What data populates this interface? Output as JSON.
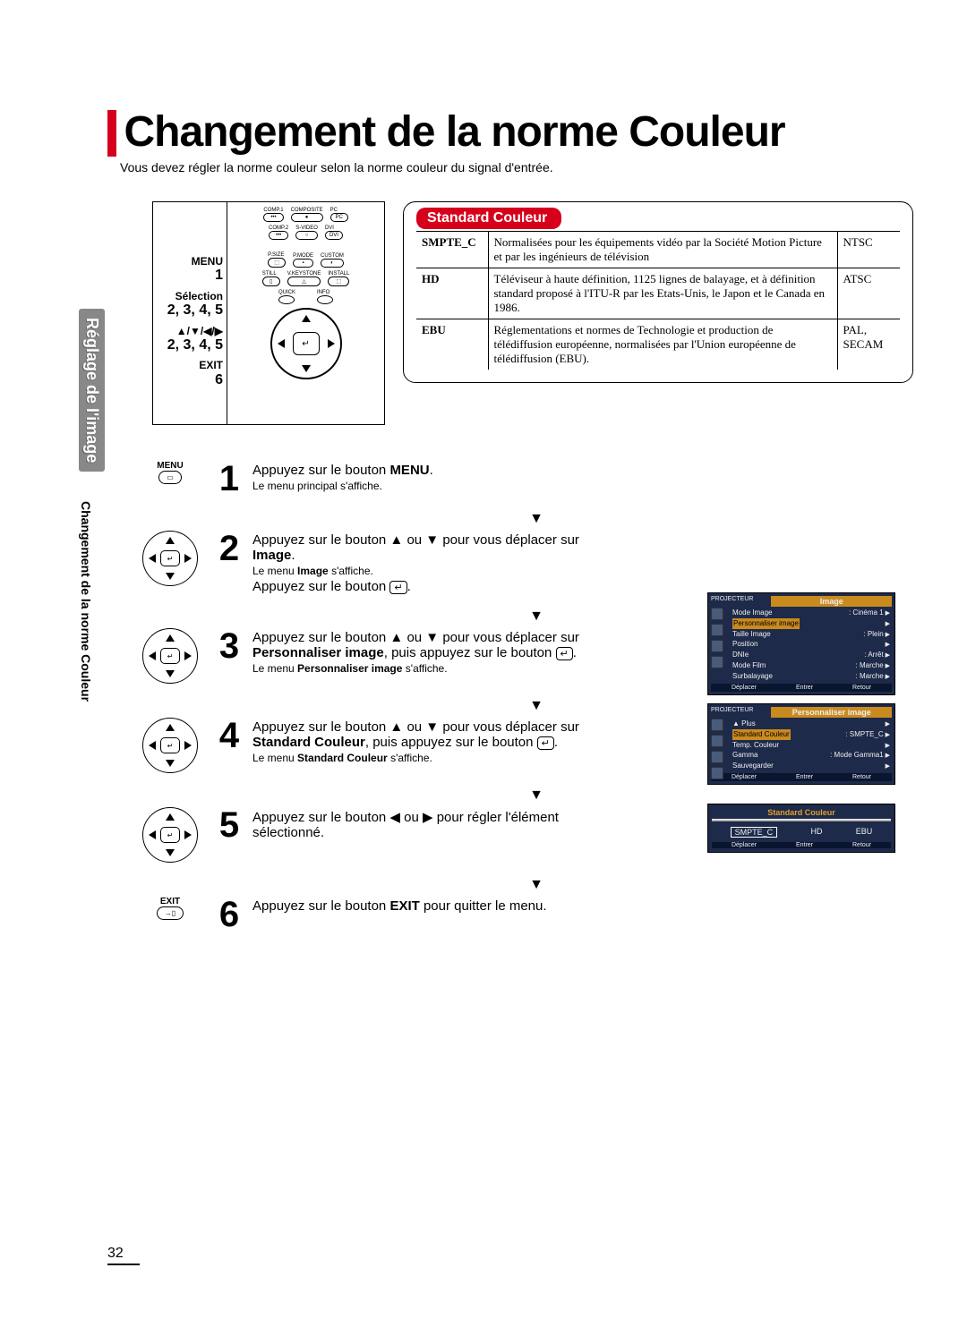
{
  "colors": {
    "red": "#d6001c",
    "osd_bg": "#1e2a4a",
    "osd_accent": "#c98a1e",
    "tab_gray": "#888888"
  },
  "page_number": "32",
  "title": "Changement de la norme Couleur",
  "intro": "Vous devez régler la norme couleur selon la norme couleur du signal d'entrée.",
  "side_tab1": "Réglage de l'image",
  "side_tab2": "Changement de la norme Couleur",
  "remote_labels": {
    "menu": "MENU",
    "menu_num": "1",
    "selection": "Sélection",
    "selection_num": "2, 3, 4, 5",
    "arrows": "▲/▼/◀/▶",
    "arrows_num": "2, 3, 4, 5",
    "exit": "EXIT",
    "exit_num": "6"
  },
  "remote_buttons": {
    "row1": [
      "COMP.1",
      "COMPOSITE",
      "PC"
    ],
    "row2": [
      "COMP.2",
      "S-VIDEO",
      "DVI"
    ],
    "row3": [
      "P.SIZE",
      "P.MODE",
      "CUSTOM"
    ],
    "row4": [
      "STILL",
      "V.KEYSTONE",
      "INSTALL"
    ],
    "qi": [
      "QUICK",
      "INFO"
    ],
    "corners": [
      "MENU",
      "EXIT"
    ]
  },
  "sc_header": "Standard Couleur",
  "sc_rows": [
    {
      "code": "SMPTE_C",
      "desc": "Normalisées pour les équipements vidéo par la Société Motion Picture et par les ingénieurs de télévision",
      "std": "NTSC"
    },
    {
      "code": "HD",
      "desc": "Téléviseur à haute définition, 1125 lignes de balayage, et à définition standard proposé à l'ITU-R par les Etats-Unis, le Japon et le Canada en 1986.",
      "std": "ATSC"
    },
    {
      "code": "EBU",
      "desc": "Réglementations et normes de Technologie et production de télédiffusion européenne, normalisées par l'Union européenne de télédiffusion (EBU).",
      "std": "PAL, SECAM"
    }
  ],
  "steps": {
    "s1": {
      "num": "1",
      "icon_label": "MENU",
      "line1a": "Appuyez sur le bouton ",
      "line1b": "MENU",
      "line1c": ".",
      "sub": "Le menu principal s'affiche."
    },
    "s2": {
      "num": "2",
      "line1a": "Appuyez sur le bouton ▲ ou ▼ pour vous déplacer sur ",
      "line1b": "Image",
      "line1c": ".",
      "sub1a": "Le menu ",
      "sub1b": "Image",
      "sub1c": " s'affiche.",
      "line2a": "Appuyez sur le bouton ",
      "enter": "↵",
      "line2b": "."
    },
    "s3": {
      "num": "3",
      "line1": "Appuyez sur le bouton ▲ ou ▼ pour vous déplacer sur ",
      "bold": "Personnaliser image",
      "line2": ", puis appuyez sur le bouton ",
      "enter": "↵",
      "line3": ".",
      "sub1a": "Le menu ",
      "sub1b": "Personnaliser image",
      "sub1c": " s'affiche."
    },
    "s4": {
      "num": "4",
      "line1": "Appuyez sur le bouton ▲ ou ▼ pour vous déplacer sur ",
      "bold": "Standard Couleur",
      "line2": ", puis appuyez sur le bouton ",
      "enter": "↵",
      "line3": ".",
      "sub1a": "Le menu ",
      "sub1b": "Standard Couleur",
      "sub1c": " s'affiche."
    },
    "s5": {
      "num": "5",
      "line": "Appuyez sur le bouton ◀ ou ▶ pour régler l'élément sélectionné."
    },
    "s6": {
      "num": "6",
      "icon_label": "EXIT",
      "line1a": "Appuyez sur le bouton ",
      "line1b": "EXIT",
      "line1c": " pour quitter le menu."
    }
  },
  "osd1": {
    "title": "Image",
    "header_label": "PROJECTEUR",
    "rows": [
      [
        "Mode Image",
        ": Cinéma 1"
      ],
      [
        "Personnaliser image",
        ""
      ],
      [
        "Taille Image",
        ": Plein"
      ],
      [
        "Position",
        ""
      ],
      [
        "DNIe",
        ": Arrêt"
      ],
      [
        "Mode Film",
        ": Marche"
      ],
      [
        "Surbalayage",
        ": Marche"
      ]
    ],
    "footer": [
      "Déplacer",
      "Entrer",
      "Retour"
    ],
    "highlight_row": 1
  },
  "osd2": {
    "title": "Personnaliser image",
    "header_label": "PROJECTEUR",
    "rows": [
      [
        "▲ Plus",
        ""
      ],
      [
        "Standard Couleur",
        ": SMPTE_C"
      ],
      [
        "Temp. Couleur",
        ""
      ],
      [
        "Gamma",
        ": Mode Gamma1"
      ],
      [
        "Sauvegarder",
        ""
      ]
    ],
    "footer": [
      "Déplacer",
      "Entrer",
      "Retour"
    ],
    "highlight_row": 1
  },
  "osd3": {
    "title": "Standard Couleur",
    "opts": [
      "SMPTE_C",
      "HD",
      "EBU"
    ],
    "footer": [
      "Déplacer",
      "Entrer",
      "Retour"
    ]
  }
}
